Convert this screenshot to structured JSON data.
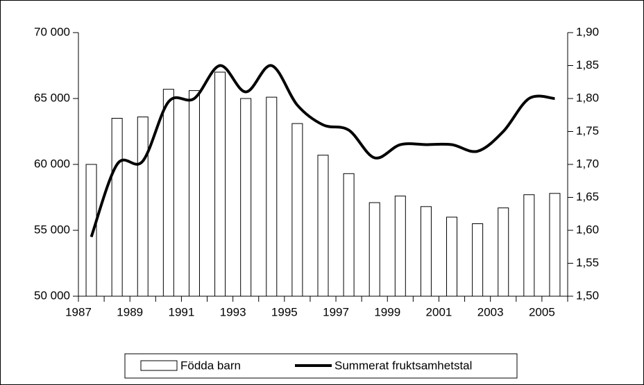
{
  "chart_data": {
    "type": "bar-line",
    "categories": [
      "1987",
      null,
      "1989",
      null,
      "1991",
      null,
      "1993",
      null,
      "1995",
      null,
      "1997",
      null,
      "1999",
      null,
      "2001",
      null,
      "2003",
      null,
      "2005"
    ],
    "series": [
      {
        "name": "Födda barn",
        "type": "bar",
        "color": "#ffffff",
        "values": [
          60000,
          63500,
          63600,
          65700,
          65600,
          67000,
          65000,
          65100,
          63100,
          60700,
          59300,
          57100,
          57600,
          56800,
          56000,
          55500,
          56700,
          57700,
          57800
        ]
      },
      {
        "name": "Summerat fruktsamhetstal",
        "type": "line",
        "axis": "y2",
        "color": "#000000",
        "values": [
          1.59,
          1.7,
          1.705,
          1.795,
          1.8,
          1.85,
          1.81,
          1.85,
          1.79,
          1.76,
          1.752,
          1.71,
          1.73,
          1.73,
          1.73,
          1.72,
          1.75,
          1.8,
          1.8
        ]
      }
    ],
    "ylim": [
      50000,
      70000
    ],
    "yticks": [
      {
        "value": 50000,
        "label": "50 000"
      },
      {
        "value": 55000,
        "label": "55 000"
      },
      {
        "value": 60000,
        "label": "60 000"
      },
      {
        "value": 65000,
        "label": "65 000"
      },
      {
        "value": 70000,
        "label": "70 000"
      }
    ],
    "y2lim": [
      1.5,
      1.9
    ],
    "y2ticks": [
      {
        "value": 1.5,
        "label": "1,50"
      },
      {
        "value": 1.55,
        "label": "1,55"
      },
      {
        "value": 1.6,
        "label": "1,60"
      },
      {
        "value": 1.65,
        "label": "1,65"
      },
      {
        "value": 1.7,
        "label": "1,70"
      },
      {
        "value": 1.75,
        "label": "1,75"
      },
      {
        "value": 1.8,
        "label": "1,80"
      },
      {
        "value": 1.85,
        "label": "1,85"
      },
      {
        "value": 1.9,
        "label": "1,90"
      }
    ],
    "legend": "bottom"
  }
}
